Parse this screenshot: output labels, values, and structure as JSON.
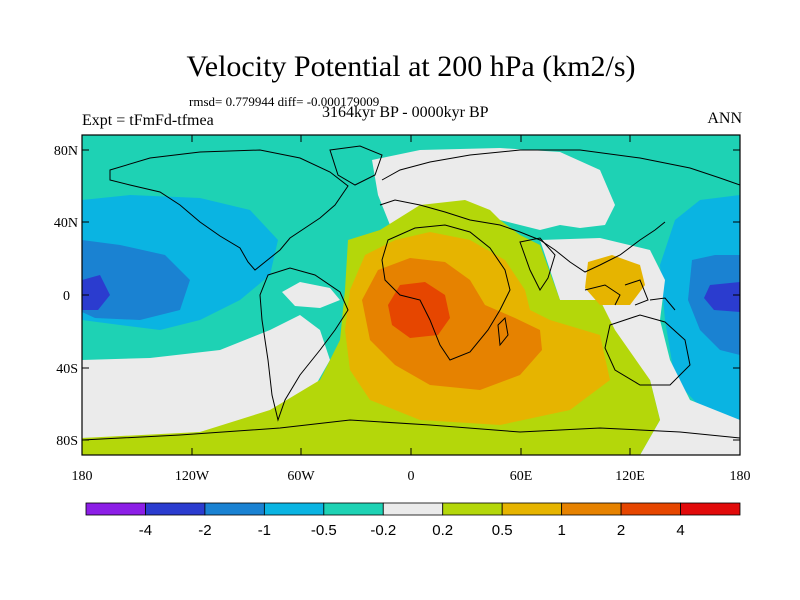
{
  "title": "Velocity Potential at 200 hPa (km2/s)",
  "stats": "rmsd= 0.779944 diff= -0.000179009",
  "expt": "Expt = tFmFd-tfmea",
  "period": "3164kyr BP - 0000kyr BP",
  "season": "ANN",
  "lat_ticks": [
    "80N",
    "40N",
    "0",
    "40S",
    "80S"
  ],
  "lon_ticks": [
    "180",
    "120W",
    "60W",
    "0",
    "60E",
    "120E",
    "180"
  ],
  "colorbar": {
    "labels": [
      "-4",
      "-2",
      "-1",
      "-0.5",
      "-0.2",
      "0.2",
      "0.5",
      "1",
      "2",
      "4"
    ],
    "colors": [
      "#8c1ee6",
      "#2b3ccf",
      "#1a82d2",
      "#0ab4e2",
      "#1ed2b4",
      "#ebebeb",
      "#b4d70a",
      "#e6b400",
      "#e68200",
      "#e64600",
      "#e10a0a"
    ]
  }
}
